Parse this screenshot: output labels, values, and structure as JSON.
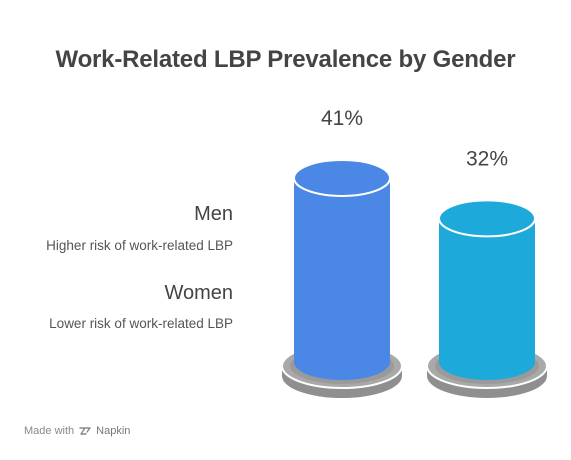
{
  "chart_data": {
    "type": "bar",
    "title": "Work-Related LBP Prevalence by Gender",
    "categories": [
      "Men",
      "Women"
    ],
    "values": [
      41,
      32
    ],
    "value_labels": [
      "41%",
      "32%"
    ],
    "descriptions": [
      "Higher risk of work-related LBP",
      "Lower risk of work-related LBP"
    ],
    "colors": [
      "#4B87E5",
      "#1DAADB"
    ],
    "ylim": [
      0,
      41
    ],
    "xlabel": "",
    "ylabel": ""
  },
  "footer": {
    "made_with": "Made with",
    "brand": "Napkin",
    "icon": "napkin-logo-icon"
  }
}
